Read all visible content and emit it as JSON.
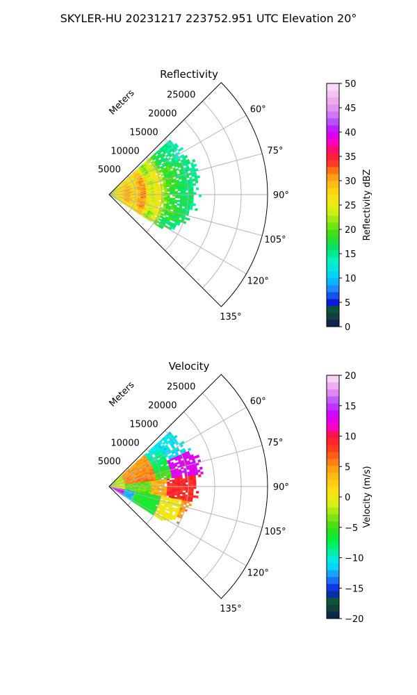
{
  "figure": {
    "suptitle": "SKYLER-HU  20231217  223752.951 UTC Elevation 20°"
  },
  "colors": {
    "grid": "#b0b0b0",
    "frame": "#000000",
    "background": "#ffffff"
  },
  "chart_data": [
    {
      "type": "polar-ppi",
      "title": "Reflectivity",
      "radial_axis_label": "Meters",
      "range_ticks": [
        "5000",
        "10000",
        "15000",
        "20000",
        "25000"
      ],
      "range_tick_values": [
        5000,
        10000,
        15000,
        20000,
        25000
      ],
      "rmax": 30000,
      "theta_range_deg": [
        45,
        135
      ],
      "azimuth_ticks": [
        "60°",
        "75°",
        "90°",
        "105°",
        "120°",
        "135°"
      ],
      "azimuth_tick_values": [
        60,
        75,
        90,
        105,
        120,
        135
      ],
      "grid": true,
      "data_sector_deg": [
        48,
        122
      ],
      "colorbar": {
        "label": "Reflectivity dBZ",
        "min": 0,
        "max": 50,
        "ticks": [
          "0",
          "5",
          "10",
          "15",
          "20",
          "25",
          "30",
          "35",
          "40",
          "45",
          "50"
        ],
        "tick_values": [
          0,
          5,
          10,
          15,
          20,
          25,
          30,
          35,
          40,
          45,
          50
        ],
        "levels": 35,
        "stops": [
          [
            0,
            "#0a1a5a"
          ],
          [
            2,
            "#143c3c"
          ],
          [
            4,
            "#0b5a36"
          ],
          [
            5,
            "#0a1ad8"
          ],
          [
            8,
            "#1e90ff"
          ],
          [
            10,
            "#00c8ff"
          ],
          [
            13,
            "#00f5d0"
          ],
          [
            16,
            "#00e46e"
          ],
          [
            19,
            "#3cdc14"
          ],
          [
            21,
            "#7ae614"
          ],
          [
            24,
            "#dcf014"
          ],
          [
            27,
            "#ffe014"
          ],
          [
            30,
            "#ffb414"
          ],
          [
            32,
            "#ff7814"
          ],
          [
            34,
            "#ff2a2a"
          ],
          [
            36,
            "#ff1050"
          ],
          [
            38,
            "#ff00c8"
          ],
          [
            40,
            "#c800ff"
          ],
          [
            42,
            "#b44cff"
          ],
          [
            44,
            "#dc82f0"
          ],
          [
            47,
            "#f0b4f0"
          ],
          [
            50,
            "#fae6fa"
          ]
        ]
      },
      "field_profile": {
        "ranges_m": [
          0,
          2000,
          3500,
          5000,
          6500,
          8000,
          9500,
          11000,
          13000,
          15000,
          17000,
          19000,
          21000
        ],
        "values": [
          24,
          26,
          30,
          27,
          32,
          23,
          27,
          19,
          18,
          16,
          15,
          14,
          13
        ]
      },
      "max_range_by_azimuth": [
        [
          48,
          15000
        ],
        [
          60,
          15000
        ],
        [
          72,
          17000
        ],
        [
          82,
          16500
        ],
        [
          90,
          16000
        ],
        [
          100,
          15500
        ],
        [
          110,
          14500
        ],
        [
          118,
          13500
        ],
        [
          122,
          11000
        ]
      ]
    },
    {
      "type": "polar-ppi",
      "title": "Velocity",
      "radial_axis_label": "Meters",
      "range_ticks": [
        "5000",
        "10000",
        "15000",
        "20000",
        "25000"
      ],
      "range_tick_values": [
        5000,
        10000,
        15000,
        20000,
        25000
      ],
      "rmax": 30000,
      "theta_range_deg": [
        45,
        135
      ],
      "azimuth_ticks": [
        "60°",
        "75°",
        "90°",
        "105°",
        "120°",
        "135°"
      ],
      "azimuth_tick_values": [
        60,
        75,
        90,
        105,
        120,
        135
      ],
      "grid": true,
      "data_sector_deg": [
        48,
        122
      ],
      "colorbar": {
        "label": "Velocity (m/s)",
        "min": -20,
        "max": 20,
        "ticks": [
          "−20",
          "−15",
          "−10",
          "−5",
          "0",
          "5",
          "10",
          "15",
          "20"
        ],
        "tick_values": [
          -20,
          -15,
          -10,
          -5,
          0,
          5,
          10,
          15,
          20
        ],
        "levels": 35,
        "stops": [
          [
            -20,
            "#0a1a5a"
          ],
          [
            -18.5,
            "#143c3c"
          ],
          [
            -17,
            "#0b5a36"
          ],
          [
            -15.5,
            "#0a1ad8"
          ],
          [
            -13,
            "#1e90ff"
          ],
          [
            -11,
            "#00e8ff"
          ],
          [
            -9,
            "#00f0a0"
          ],
          [
            -7,
            "#00f03c"
          ],
          [
            -5,
            "#3cdc14"
          ],
          [
            -3,
            "#8ce614"
          ],
          [
            -1,
            "#dcf014"
          ],
          [
            1,
            "#ffe014"
          ],
          [
            4,
            "#ffb414"
          ],
          [
            6,
            "#ff7814"
          ],
          [
            8,
            "#ff3c1e"
          ],
          [
            10,
            "#ff1432"
          ],
          [
            11.5,
            "#ff00c8"
          ],
          [
            13.5,
            "#d200ff"
          ],
          [
            15.5,
            "#b44cff"
          ],
          [
            17,
            "#dc82f0"
          ],
          [
            18.5,
            "#f0b4f0"
          ],
          [
            20,
            "#fae6fa"
          ]
        ]
      },
      "field_model": "az_r",
      "max_range_by_azimuth": [
        [
          48,
          15000
        ],
        [
          60,
          15000
        ],
        [
          72,
          17000
        ],
        [
          82,
          16500
        ],
        [
          90,
          16000
        ],
        [
          100,
          15500
        ],
        [
          110,
          14500
        ],
        [
          118,
          13500
        ],
        [
          122,
          11000
        ]
      ]
    }
  ]
}
